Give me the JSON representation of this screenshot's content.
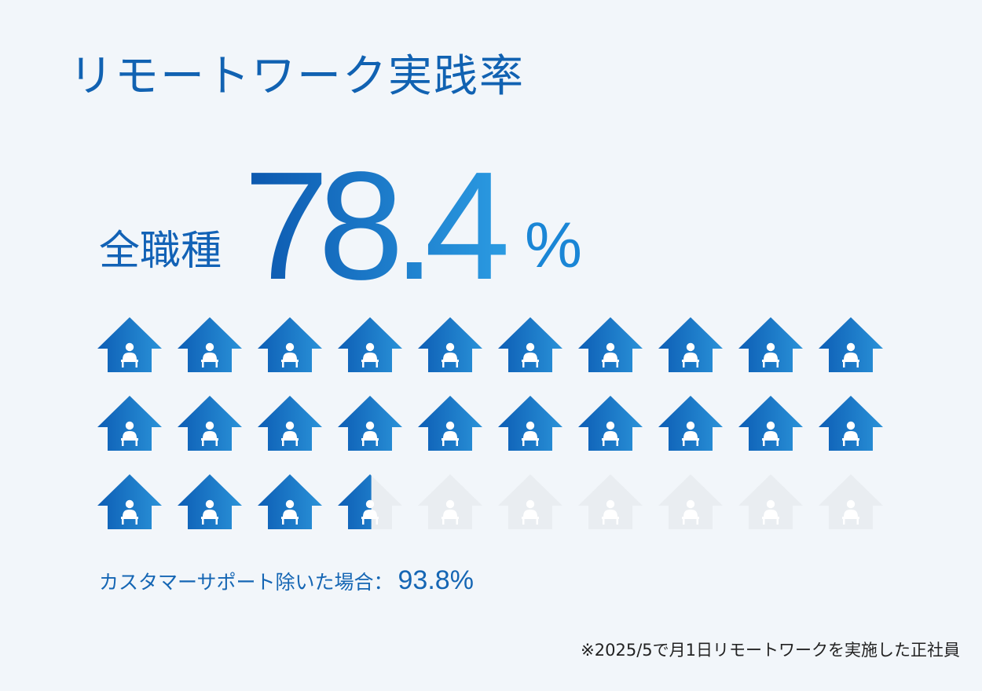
{
  "title": "リモートワーク実践率",
  "headline": {
    "category": "全職種",
    "number": "78.4",
    "unit": "%"
  },
  "chart_data": {
    "type": "pictogram",
    "value_percent": 78.4,
    "icon": "house-with-person-at-laptop-icon",
    "grid": {
      "rows": 3,
      "columns": 10
    },
    "total_icons": 30,
    "filled_icons": 23.52,
    "colors": {
      "filled_start": "#0d5eb5",
      "filled_end": "#2a92d8",
      "empty": "#e9edf1",
      "number_start": "#0c57ae",
      "number_end": "#2b9be2"
    }
  },
  "note": {
    "label": "カスタマーサポート除いた場合：",
    "value": "93.8%"
  },
  "footnote": "※2025/5で月1日リモートワークを実施した正社員"
}
